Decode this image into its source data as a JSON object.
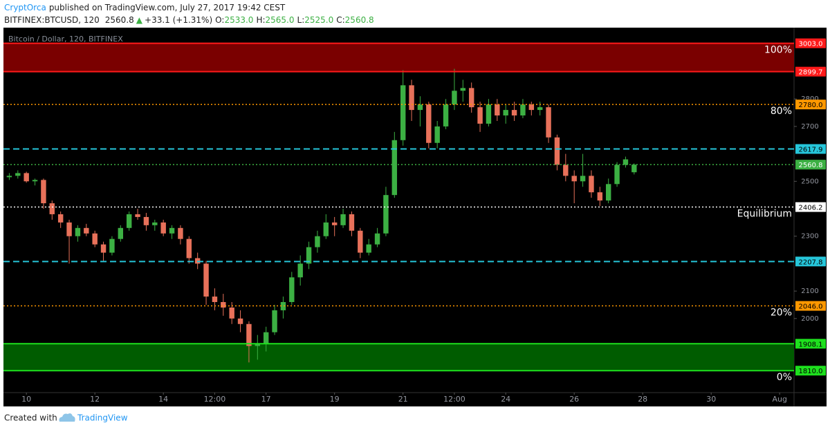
{
  "header": {
    "author": "CryptOrca",
    "published": "published on TradingView.com, July 27, 2017 19:42 CEST",
    "symbol": "BITFINEX:BTCUSD, 120",
    "last": "2560.8",
    "arrow": "▲",
    "change": "+33.1 (+1.31%)",
    "ohlc": [
      {
        "key": "O:",
        "value": "2533.0"
      },
      {
        "key": "H:",
        "value": "2565.0"
      },
      {
        "key": "L:",
        "value": "2525.0"
      },
      {
        "key": "C:",
        "value": "2560.8"
      }
    ]
  },
  "chart_data": {
    "type": "candlestick",
    "title": "Bitcoin / Dollar, 120, BITFINEX",
    "up_color": "#3cb043",
    "down_color": "#e8715a",
    "grid": false,
    "xlim": [
      9.33,
      32.42
    ],
    "ylim": [
      1730,
      3060
    ],
    "xticks": [
      10,
      12,
      14,
      {
        "value": 15.5,
        "label": "12:00"
      },
      17,
      19,
      21,
      {
        "value": 22.5,
        "label": "12:00"
      },
      24,
      26,
      28,
      30,
      {
        "value": 32,
        "label": "Aug"
      }
    ],
    "yticks": [
      2000,
      2100,
      2300,
      2500,
      2700,
      2800
    ],
    "x": [
      9.5,
      9.75,
      10,
      10.25,
      10.5,
      10.75,
      11,
      11.25,
      11.5,
      11.75,
      12,
      12.25,
      12.5,
      12.75,
      13,
      13.25,
      13.5,
      13.75,
      14,
      14.25,
      14.5,
      14.75,
      15,
      15.25,
      15.5,
      15.75,
      16,
      16.25,
      16.5,
      16.75,
      17,
      17.25,
      17.5,
      17.75,
      18,
      18.25,
      18.5,
      18.75,
      19,
      19.25,
      19.5,
      19.75,
      20,
      20.25,
      20.5,
      20.75,
      21,
      21.25,
      21.5,
      21.75,
      22,
      22.25,
      22.5,
      22.75,
      23,
      23.25,
      23.5,
      23.75,
      24,
      24.25,
      24.5,
      24.75,
      25,
      25.25,
      25.5,
      25.75,
      26,
      26.25,
      26.5,
      26.75,
      27,
      27.25,
      27.5,
      27.75
    ],
    "open": [
      2515,
      2520,
      2530,
      2500,
      2505,
      2420,
      2380,
      2350,
      2300,
      2330,
      2310,
      2270,
      2240,
      2290,
      2330,
      2380,
      2370,
      2340,
      2350,
      2310,
      2330,
      2290,
      2220,
      2200,
      2080,
      2060,
      2040,
      2000,
      1980,
      1900,
      1910,
      1950,
      2030,
      2060,
      2150,
      2200,
      2260,
      2300,
      2350,
      2340,
      2380,
      2320,
      2240,
      2270,
      2310,
      2450,
      2650,
      2850,
      2760,
      2780,
      2640,
      2700,
      2780,
      2830,
      2840,
      2770,
      2710,
      2780,
      2740,
      2760,
      2740,
      2780,
      2760,
      2770,
      2660,
      2560,
      2520,
      2500,
      2520,
      2460,
      2430,
      2490,
      2560,
      2533
    ],
    "high": [
      2530,
      2540,
      2535,
      2510,
      2510,
      2430,
      2390,
      2360,
      2340,
      2345,
      2320,
      2280,
      2300,
      2340,
      2390,
      2400,
      2385,
      2360,
      2360,
      2340,
      2340,
      2300,
      2240,
      2210,
      2110,
      2090,
      2060,
      2030,
      1990,
      1940,
      1970,
      2050,
      2080,
      2170,
      2230,
      2280,
      2320,
      2380,
      2370,
      2400,
      2390,
      2330,
      2290,
      2330,
      2480,
      2680,
      2905,
      2870,
      2810,
      2790,
      2720,
      2800,
      2910,
      2870,
      2860,
      2790,
      2800,
      2800,
      2780,
      2790,
      2800,
      2790,
      2790,
      2780,
      2670,
      2600,
      2540,
      2600,
      2540,
      2480,
      2510,
      2570,
      2590,
      2565
    ],
    "low": [
      2505,
      2510,
      2495,
      2485,
      2400,
      2360,
      2330,
      2200,
      2280,
      2300,
      2260,
      2210,
      2230,
      2280,
      2320,
      2360,
      2320,
      2320,
      2300,
      2290,
      2270,
      2200,
      2180,
      2050,
      2030,
      2010,
      1980,
      1950,
      1840,
      1850,
      1880,
      1940,
      2000,
      2050,
      2120,
      2180,
      2240,
      2290,
      2300,
      2330,
      2300,
      2220,
      2230,
      2260,
      2300,
      2440,
      2630,
      2720,
      2700,
      2620,
      2620,
      2690,
      2760,
      2790,
      2750,
      2680,
      2700,
      2720,
      2710,
      2720,
      2730,
      2740,
      2740,
      2640,
      2540,
      2500,
      2420,
      2480,
      2440,
      2410,
      2420,
      2480,
      2550,
      2525
    ],
    "close": [
      2520,
      2530,
      2500,
      2505,
      2420,
      2380,
      2350,
      2300,
      2330,
      2310,
      2270,
      2240,
      2290,
      2330,
      2380,
      2370,
      2340,
      2350,
      2310,
      2330,
      2290,
      2220,
      2200,
      2080,
      2060,
      2040,
      2000,
      1980,
      1900,
      1910,
      1950,
      2030,
      2060,
      2150,
      2200,
      2260,
      2300,
      2350,
      2340,
      2380,
      2320,
      2240,
      2270,
      2310,
      2450,
      2650,
      2850,
      2760,
      2780,
      2640,
      2700,
      2780,
      2830,
      2840,
      2770,
      2710,
      2780,
      2740,
      2760,
      2740,
      2780,
      2760,
      2770,
      2660,
      2560,
      2520,
      2500,
      2520,
      2460,
      2430,
      2490,
      2560,
      2580,
      2560.8
    ],
    "levels": [
      {
        "value": 3003,
        "label": "3003.0",
        "color": "#ff1a1a",
        "text_color": "#ffffff",
        "style": "solid",
        "annotation": "100%",
        "fill_to_next": "#7a0000"
      },
      {
        "value": 2899.7,
        "label": "2899.7",
        "color": "#ff1a1a",
        "text_color": "#ffffff",
        "style": "solid"
      },
      {
        "value": 2780,
        "label": "2780.0",
        "color": "#ff9800",
        "text_color": "#000000",
        "style": "dotted",
        "annotation": "80%"
      },
      {
        "value": 2617.9,
        "label": "2617.9",
        "color": "#26c6da",
        "text_color": "#000000",
        "style": "dashed"
      },
      {
        "value": 2560.8,
        "label": "2560.8",
        "color": "#3cb043",
        "text_color": "#ffffff",
        "style": "dotted"
      },
      {
        "value": 2406.2,
        "label": "2406.2",
        "color": "#ffffff",
        "text_color": "#000000",
        "style": "dotted",
        "annotation": "Equilibrium"
      },
      {
        "value": 2207.8,
        "label": "2207.8",
        "color": "#26c6da",
        "text_color": "#000000",
        "style": "dashed"
      },
      {
        "value": 2046,
        "label": "2046.0",
        "color": "#ff9800",
        "text_color": "#000000",
        "style": "dotted",
        "annotation": "20%"
      },
      {
        "value": 1908.1,
        "label": "1908.1",
        "color": "#1ee01e",
        "text_color": "#000000",
        "style": "solid",
        "fill_to_next": "#005c00"
      },
      {
        "value": 1810,
        "label": "1810.0",
        "color": "#1ee01e",
        "text_color": "#000000",
        "style": "solid",
        "annotation": "0%"
      }
    ]
  },
  "footer": {
    "created": "Created with",
    "brand": "TradingView"
  }
}
